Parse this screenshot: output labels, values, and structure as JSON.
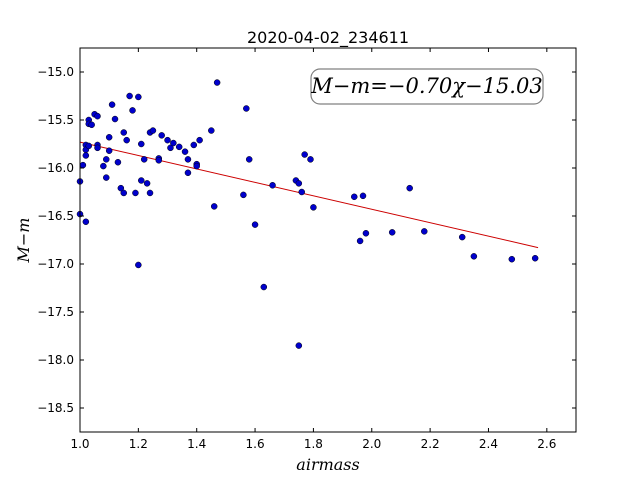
{
  "chart_data": {
    "type": "scatter",
    "title": "2020-04-02_234611",
    "xlabel": "airmass",
    "ylabel": "M−m",
    "xlim": [
      1.0,
      2.7
    ],
    "ylim": [
      -18.75,
      -14.75
    ],
    "y_inverted": true,
    "grid": false,
    "x_ticks": [
      "1.0",
      "1.2",
      "1.4",
      "1.6",
      "1.8",
      "2.0",
      "2.2",
      "2.4",
      "2.6"
    ],
    "y_ticks": [
      "−15.0",
      "−15.5",
      "−16.0",
      "−16.5",
      "−17.0",
      "−17.5",
      "−18.0",
      "−18.5"
    ],
    "annotation": "M−m=−0.70χ−15.03",
    "point_color": "#0000cc",
    "fit_color": "#cc0000",
    "fit_line": {
      "slope": -0.7,
      "intercept": -15.03,
      "x_range": [
        1.0,
        2.57
      ]
    },
    "series": [
      {
        "x": [
          1.0,
          1.0,
          1.01,
          1.02,
          1.02,
          1.02,
          1.02,
          1.03,
          1.03,
          1.03,
          1.04,
          1.05,
          1.06,
          1.06,
          1.06,
          1.08,
          1.09,
          1.09,
          1.1,
          1.1,
          1.11,
          1.12,
          1.13,
          1.14,
          1.15,
          1.15,
          1.16,
          1.17,
          1.18,
          1.19,
          1.2,
          1.2,
          1.21,
          1.21,
          1.22,
          1.23,
          1.24,
          1.24,
          1.25,
          1.27,
          1.27,
          1.28,
          1.3,
          1.31,
          1.32,
          1.34,
          1.36,
          1.37,
          1.37,
          1.39,
          1.4,
          1.4,
          1.41,
          1.45,
          1.46,
          1.47,
          1.56,
          1.57,
          1.58,
          1.6,
          1.63,
          1.66,
          1.74,
          1.75,
          1.75,
          1.76,
          1.77,
          1.79,
          1.8,
          1.94,
          1.96,
          1.97,
          1.98,
          2.07,
          2.13,
          2.18,
          2.31,
          2.35,
          2.48,
          2.56
        ],
        "y": [
          -16.14,
          -16.48,
          -15.97,
          -15.76,
          -15.81,
          -15.87,
          -16.56,
          -15.5,
          -15.54,
          -15.77,
          -15.55,
          -15.44,
          -15.46,
          -15.76,
          -15.79,
          -15.98,
          -15.91,
          -16.1,
          -15.68,
          -15.82,
          -15.34,
          -15.49,
          -15.94,
          -16.21,
          -16.26,
          -15.63,
          -15.71,
          -15.25,
          -15.4,
          -16.26,
          -17.01,
          -15.26,
          -15.75,
          -16.13,
          -15.91,
          -16.16,
          -16.26,
          -15.63,
          -15.61,
          -15.9,
          -15.92,
          -15.66,
          -15.71,
          -15.79,
          -15.74,
          -15.78,
          -15.83,
          -15.91,
          -16.05,
          -15.76,
          -15.96,
          -15.98,
          -15.71,
          -15.61,
          -16.4,
          -15.11,
          -16.28,
          -15.38,
          -15.91,
          -16.59,
          -17.24,
          -16.18,
          -16.13,
          -17.85,
          -16.16,
          -16.25,
          -15.86,
          -15.91,
          -16.41,
          -16.3,
          -16.76,
          -16.29,
          -16.68,
          -16.67,
          -16.21,
          -16.66,
          -16.72,
          -16.92,
          -16.95,
          -16.94
        ]
      }
    ]
  }
}
